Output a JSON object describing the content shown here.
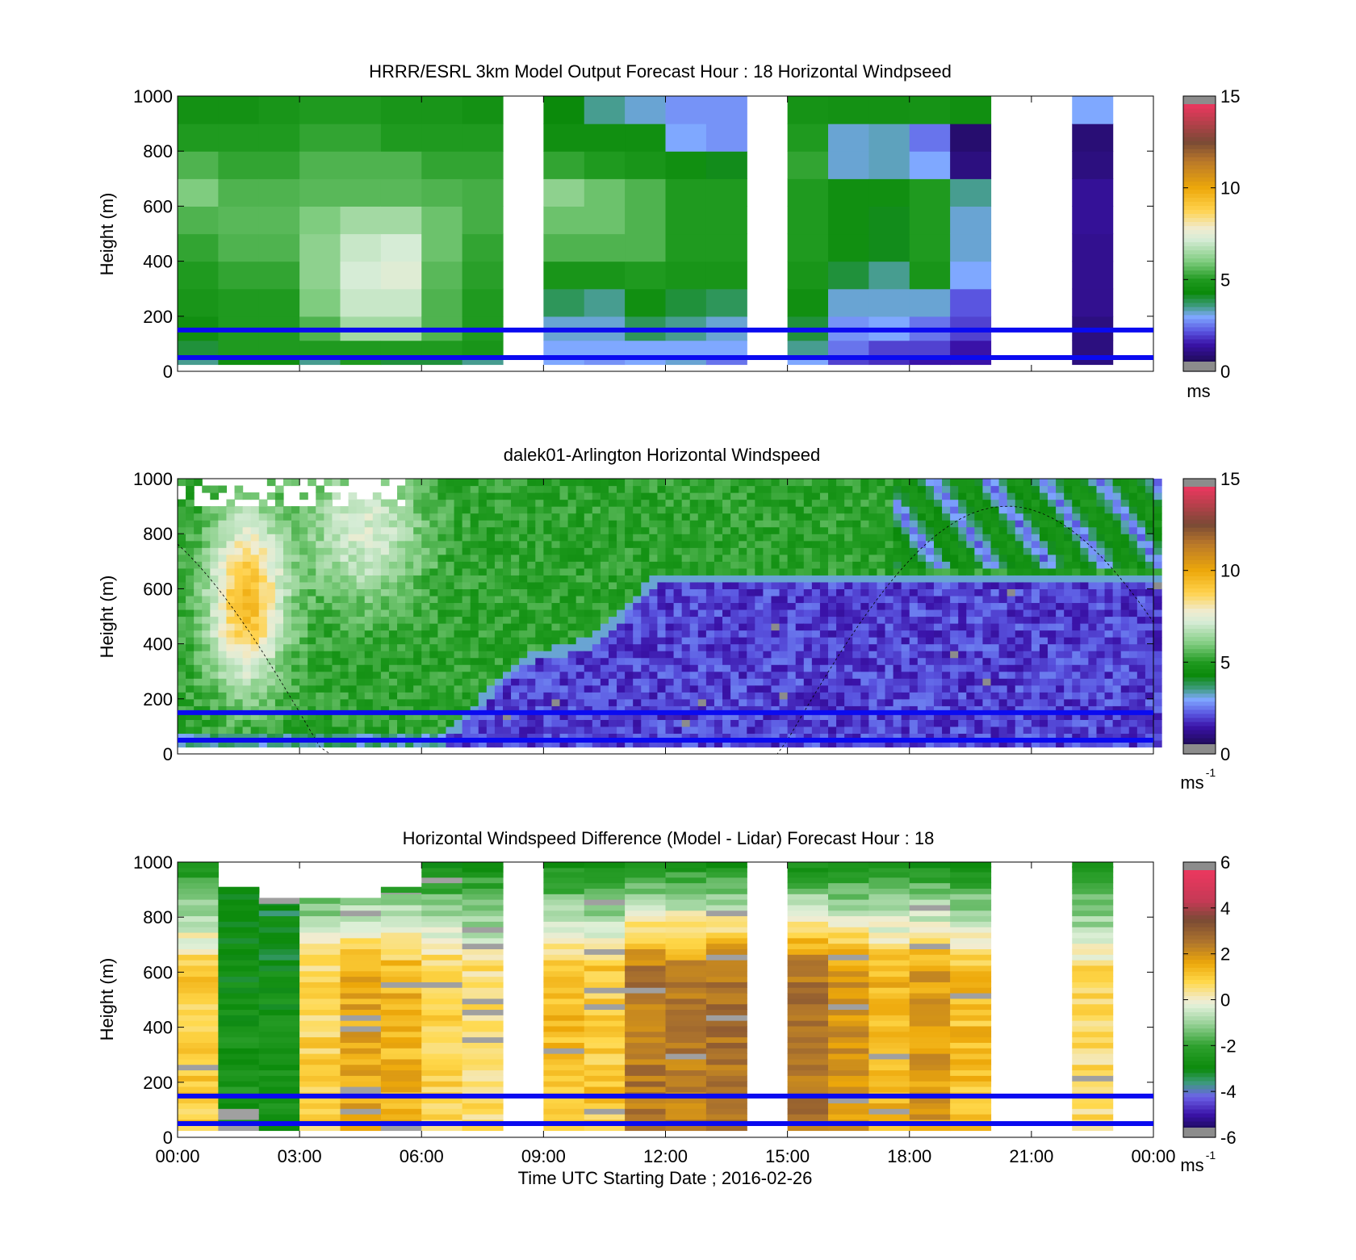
{
  "chart_data": [
    {
      "type": "heatmap",
      "title": "HRRR/ESRL 3km Model Output   Forecast Hour : 18 Horizontal Windpseed",
      "xlabel": "",
      "ylabel": "Height (m)",
      "xlim": [
        0,
        24
      ],
      "ylim": [
        0,
        1000
      ],
      "yticks": [
        "0",
        "200",
        "400",
        "600",
        "800",
        "1000"
      ],
      "colorbar": {
        "ticks": [
          "0",
          "5",
          "10",
          "15"
        ],
        "unit": "ms",
        "unit_sup": "",
        "range": [
          0,
          15
        ]
      },
      "reference_lines_m": [
        50,
        150
      ],
      "hours_with_data": [
        0,
        1,
        2,
        3,
        4,
        5,
        6,
        7,
        9,
        10,
        11,
        12,
        13,
        15,
        16,
        17,
        18,
        19,
        22
      ],
      "rows_m": [
        25,
        75,
        150,
        250,
        350,
        450,
        550,
        650,
        750,
        850,
        950
      ],
      "values": [
        [
          3.5,
          4.5,
          4.5,
          3.5,
          5.0,
          4.0,
          4.0,
          3.5,
          3.0,
          2.8,
          3.0,
          3.2,
          2.5,
          3.0,
          2.0,
          1.8,
          1.5,
          1.5,
          1.0
        ],
        [
          4.0,
          5.0,
          5.0,
          5.0,
          5.0,
          5.0,
          5.0,
          4.8,
          3.0,
          3.0,
          3.0,
          3.0,
          3.0,
          3.5,
          2.5,
          2.0,
          2.0,
          1.5,
          1.0
        ],
        [
          4.5,
          5.0,
          5.0,
          5.5,
          6.5,
          6.5,
          5.5,
          5.0,
          3.2,
          3.2,
          3.8,
          3.5,
          3.2,
          4.0,
          2.8,
          3.0,
          2.5,
          2.0,
          1.0
        ],
        [
          4.8,
          5.0,
          5.0,
          6.0,
          7.0,
          7.0,
          5.5,
          5.0,
          3.8,
          3.5,
          4.5,
          4.0,
          3.8,
          4.5,
          3.2,
          3.2,
          3.2,
          2.2,
          1.2
        ],
        [
          5.0,
          5.2,
          5.2,
          6.2,
          7.2,
          7.4,
          5.6,
          5.1,
          4.8,
          4.8,
          5.0,
          4.8,
          4.8,
          4.8,
          4.0,
          3.5,
          4.8,
          3.0,
          1.2
        ],
        [
          5.2,
          5.5,
          5.5,
          6.2,
          7.0,
          7.2,
          5.8,
          5.2,
          5.5,
          5.5,
          5.5,
          5.0,
          5.0,
          5.0,
          4.5,
          4.2,
          5.0,
          3.2,
          1.2
        ],
        [
          5.5,
          5.6,
          5.6,
          6.0,
          6.5,
          6.5,
          5.8,
          5.4,
          5.8,
          5.8,
          5.5,
          5.0,
          5.0,
          5.0,
          4.5,
          4.2,
          5.0,
          3.2,
          1.3
        ],
        [
          6.0,
          5.5,
          5.5,
          5.6,
          5.6,
          5.6,
          5.5,
          5.4,
          6.2,
          5.8,
          5.5,
          5.0,
          5.0,
          5.0,
          4.5,
          4.5,
          5.0,
          3.5,
          1.3
        ],
        [
          5.5,
          5.2,
          5.2,
          5.5,
          5.5,
          5.5,
          5.2,
          5.2,
          5.2,
          5.0,
          4.8,
          4.5,
          4.2,
          5.2,
          3.2,
          3.3,
          3.0,
          1.0,
          1.0
        ],
        [
          5.0,
          5.0,
          5.0,
          5.2,
          5.2,
          5.0,
          5.0,
          5.0,
          4.5,
          4.5,
          4.5,
          3.0,
          2.8,
          5.0,
          3.2,
          3.3,
          2.5,
          0.8,
          0.9
        ],
        [
          4.6,
          4.6,
          4.8,
          5.0,
          5.0,
          4.8,
          4.8,
          4.6,
          4.3,
          3.5,
          3.2,
          2.8,
          2.8,
          4.7,
          4.6,
          4.6,
          4.7,
          4.5,
          3.0
        ]
      ]
    },
    {
      "type": "heatmap",
      "title": "dalek01-Arlington  Horizontal Windspeed",
      "xlabel": "",
      "ylabel": "Height (m)",
      "xlim": [
        0,
        24
      ],
      "ylim": [
        0,
        1000
      ],
      "yticks": [
        "0",
        "200",
        "400",
        "600",
        "800",
        "1000"
      ],
      "colorbar": {
        "ticks": [
          "0",
          "5",
          "10",
          "15"
        ],
        "unit": "ms",
        "unit_sup": "-1",
        "range": [
          0,
          15
        ]
      },
      "reference_lines_m": [
        50,
        150
      ],
      "time_step_h": 0.2,
      "height_step_m": 25
    },
    {
      "type": "heatmap",
      "title": "Horizontal Windspeed Difference (Model - Lidar) Forecast Hour : 18",
      "xlabel": "Time UTC  Starting Date ; 2016-02-26",
      "ylabel": "Height (m)",
      "xlim": [
        0,
        24
      ],
      "ylim": [
        0,
        1000
      ],
      "xticks": [
        "00:00",
        "03:00",
        "06:00",
        "09:00",
        "12:00",
        "15:00",
        "18:00",
        "21:00",
        "00:00"
      ],
      "yticks": [
        "0",
        "200",
        "400",
        "600",
        "800",
        "1000"
      ],
      "colorbar": {
        "ticks": [
          "-6",
          "-4",
          "-2",
          "0",
          "2",
          "4",
          "6"
        ],
        "unit": "ms",
        "unit_sup": "-1",
        "range": [
          -6,
          6
        ]
      },
      "reference_lines_m": [
        50,
        150
      ],
      "hours_with_data": [
        0,
        1,
        2,
        3,
        4,
        5,
        6,
        7,
        9,
        10,
        11,
        12,
        13,
        15,
        16,
        17,
        18,
        19,
        22
      ],
      "column_tops_m": [
        1000,
        910,
        870,
        870,
        870,
        910,
        1000,
        1000,
        1000,
        1000,
        1000,
        1000,
        1000,
        1000,
        1000,
        1000,
        1000,
        1000,
        1000
      ]
    }
  ]
}
